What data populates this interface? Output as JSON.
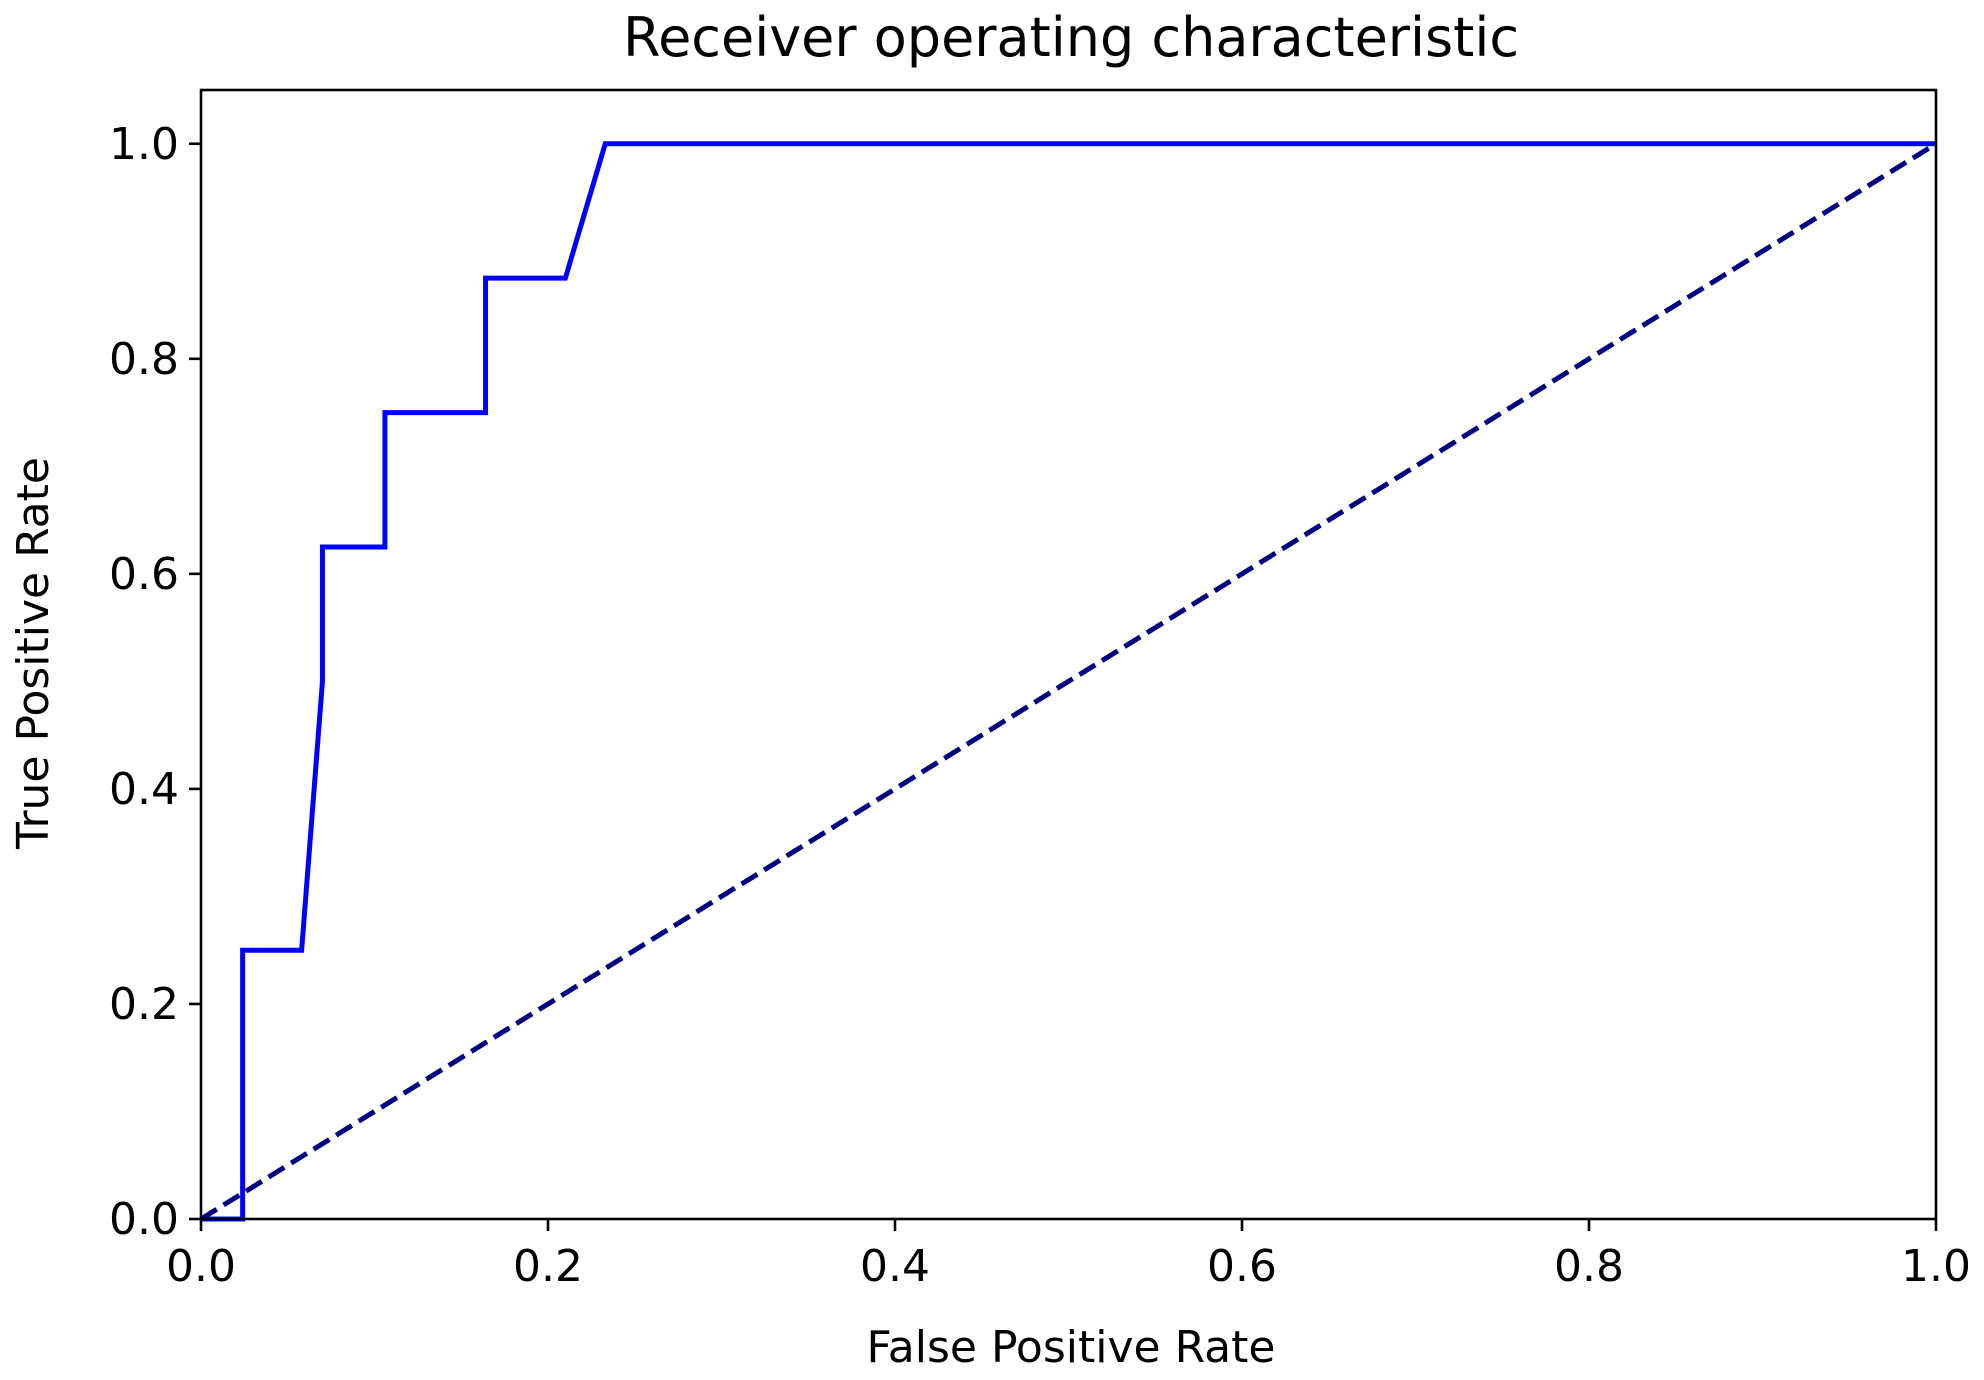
{
  "chart_data": {
    "type": "line",
    "title": "Receiver operating characteristic",
    "xlabel": "False Positive Rate",
    "ylabel": "True Positive Rate",
    "xlim": [
      0.0,
      1.0
    ],
    "ylim": [
      0.0,
      1.05
    ],
    "xticks": [
      "0.0",
      "0.2",
      "0.4",
      "0.6",
      "0.8",
      "1.0"
    ],
    "yticks": [
      "0.0",
      "0.2",
      "0.4",
      "0.6",
      "0.8",
      "1.0"
    ],
    "grid": false,
    "legend": "none",
    "series": [
      {
        "style": "solid",
        "color": "#0000ff",
        "x": [
          0.0,
          0.024,
          0.024,
          0.058,
          0.07,
          0.07,
          0.106,
          0.106,
          0.164,
          0.164,
          0.21,
          0.233,
          1.0
        ],
        "y": [
          0.0,
          0.0,
          0.25,
          0.25,
          0.5,
          0.625,
          0.625,
          0.75,
          0.75,
          0.875,
          0.875,
          1.0,
          1.0
        ]
      },
      {
        "style": "dashed",
        "color": "#000080",
        "x": [
          0.0,
          1.0
        ],
        "y": [
          0.0,
          1.0
        ]
      }
    ]
  }
}
